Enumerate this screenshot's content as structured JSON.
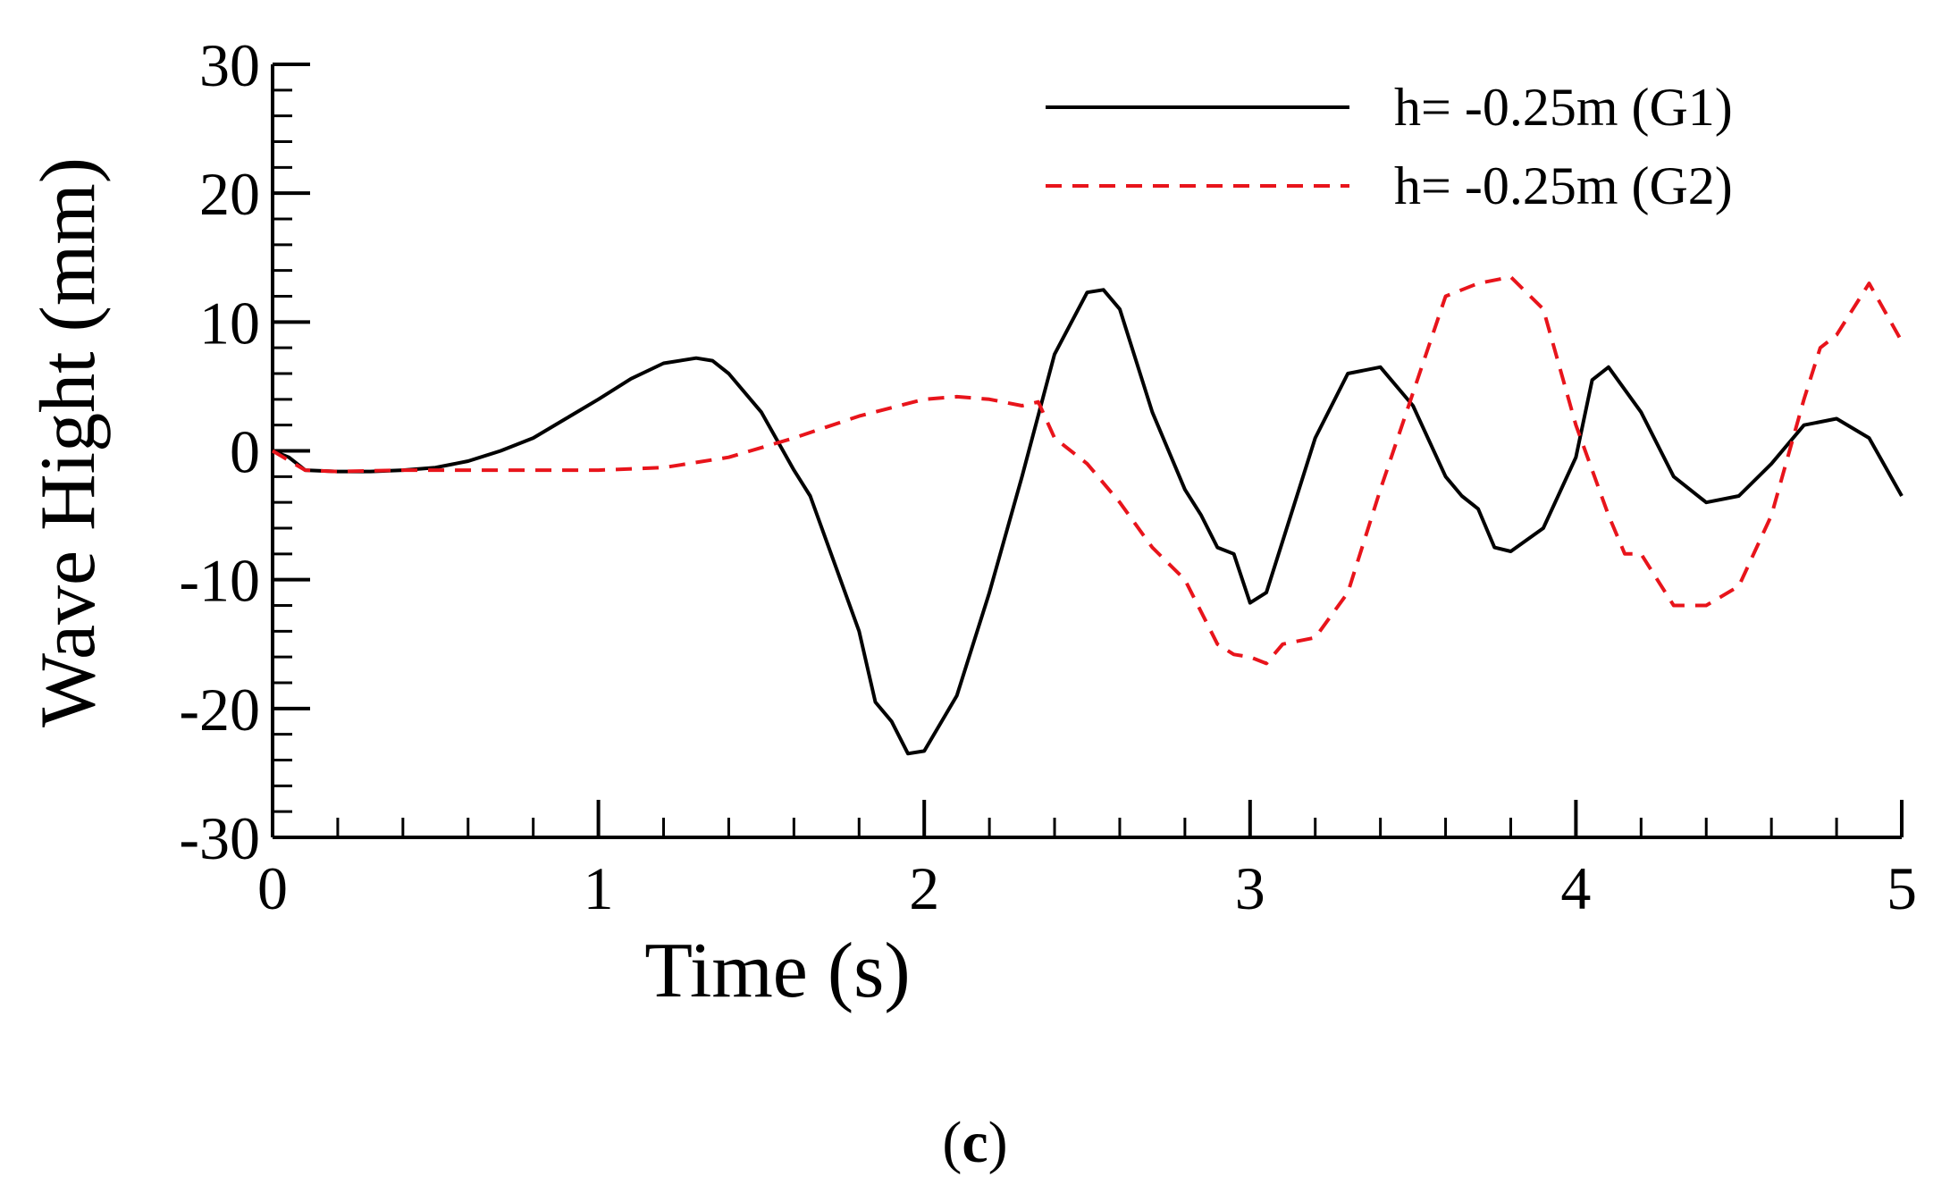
{
  "chart_data": {
    "type": "line",
    "title": "",
    "xlabel": "Time (s)",
    "ylabel": "Wave Hight (mm)",
    "xlim": [
      0,
      5
    ],
    "ylim": [
      -30,
      30
    ],
    "xticks": [
      0,
      1,
      2,
      3,
      4,
      5
    ],
    "yticks": [
      -30,
      -20,
      -10,
      0,
      10,
      20,
      30
    ],
    "xtick_labels": [
      "0",
      "1",
      "2",
      "3",
      "4",
      "5"
    ],
    "ytick_labels": [
      "-30",
      "-20",
      "-10",
      "0",
      "10",
      "20",
      "30"
    ],
    "grid": false,
    "legend_position": "top-right",
    "series": [
      {
        "name": "h= -0.25m (G1)",
        "color": "#000000",
        "dash": "solid",
        "x": [
          0,
          0.05,
          0.1,
          0.2,
          0.3,
          0.4,
          0.5,
          0.6,
          0.7,
          0.8,
          0.9,
          1.0,
          1.1,
          1.2,
          1.3,
          1.35,
          1.4,
          1.5,
          1.6,
          1.65,
          1.7,
          1.8,
          1.85,
          1.9,
          1.95,
          2.0,
          2.1,
          2.2,
          2.3,
          2.4,
          2.5,
          2.55,
          2.6,
          2.7,
          2.8,
          2.85,
          2.9,
          2.95,
          3.0,
          3.05,
          3.1,
          3.2,
          3.3,
          3.4,
          3.5,
          3.6,
          3.65,
          3.7,
          3.75,
          3.8,
          3.9,
          4.0,
          4.05,
          4.1,
          4.2,
          4.3,
          4.4,
          4.5,
          4.6,
          4.7,
          4.8,
          4.9,
          5.0
        ],
        "y": [
          0,
          -0.5,
          -1.5,
          -1.6,
          -1.6,
          -1.5,
          -1.3,
          -0.8,
          0,
          1.0,
          2.5,
          4.0,
          5.6,
          6.8,
          7.2,
          7.0,
          6.0,
          3.0,
          -1.5,
          -3.5,
          -7.0,
          -14.0,
          -19.5,
          -21.0,
          -23.5,
          -23.3,
          -19.0,
          -11.0,
          -2.0,
          7.5,
          12.3,
          12.5,
          11.0,
          3.0,
          -3.0,
          -5.0,
          -7.5,
          -8.0,
          -11.8,
          -11.0,
          -7.0,
          1.0,
          6.0,
          6.5,
          3.5,
          -2.0,
          -3.5,
          -4.5,
          -7.5,
          -7.8,
          -6.0,
          -0.5,
          5.5,
          6.5,
          3.0,
          -2.0,
          -4.0,
          -3.5,
          -1.0,
          2.0,
          2.5,
          1.0,
          -3.5
        ]
      },
      {
        "name": "h= -0.25m (G2)",
        "color": "#e8141b",
        "dash": "dashed",
        "x": [
          0,
          0.1,
          0.2,
          0.4,
          0.6,
          0.8,
          1.0,
          1.2,
          1.4,
          1.6,
          1.8,
          2.0,
          2.1,
          2.2,
          2.3,
          2.35,
          2.4,
          2.5,
          2.6,
          2.7,
          2.8,
          2.9,
          2.95,
          3.0,
          3.05,
          3.1,
          3.2,
          3.3,
          3.4,
          3.5,
          3.6,
          3.7,
          3.8,
          3.9,
          4.0,
          4.1,
          4.15,
          4.2,
          4.25,
          4.3,
          4.4,
          4.5,
          4.6,
          4.7,
          4.75,
          4.8,
          4.9,
          5.0
        ],
        "y": [
          0,
          -1.5,
          -1.6,
          -1.5,
          -1.5,
          -1.5,
          -1.5,
          -1.3,
          -0.5,
          1.0,
          2.7,
          4.0,
          4.2,
          4.0,
          3.5,
          3.8,
          1.0,
          -1.0,
          -4.0,
          -7.5,
          -10.0,
          -15.0,
          -15.8,
          -16.0,
          -16.5,
          -15.0,
          -14.5,
          -11.0,
          -3.0,
          4.5,
          12.0,
          13.0,
          13.5,
          11.0,
          2.0,
          -5.0,
          -8.0,
          -8.0,
          -10.0,
          -12.0,
          -12.0,
          -10.5,
          -5.0,
          4.0,
          8.0,
          9.0,
          13.0,
          8.5
        ]
      }
    ]
  },
  "caption": {
    "open": "(",
    "letter": "c",
    "close": ")"
  }
}
